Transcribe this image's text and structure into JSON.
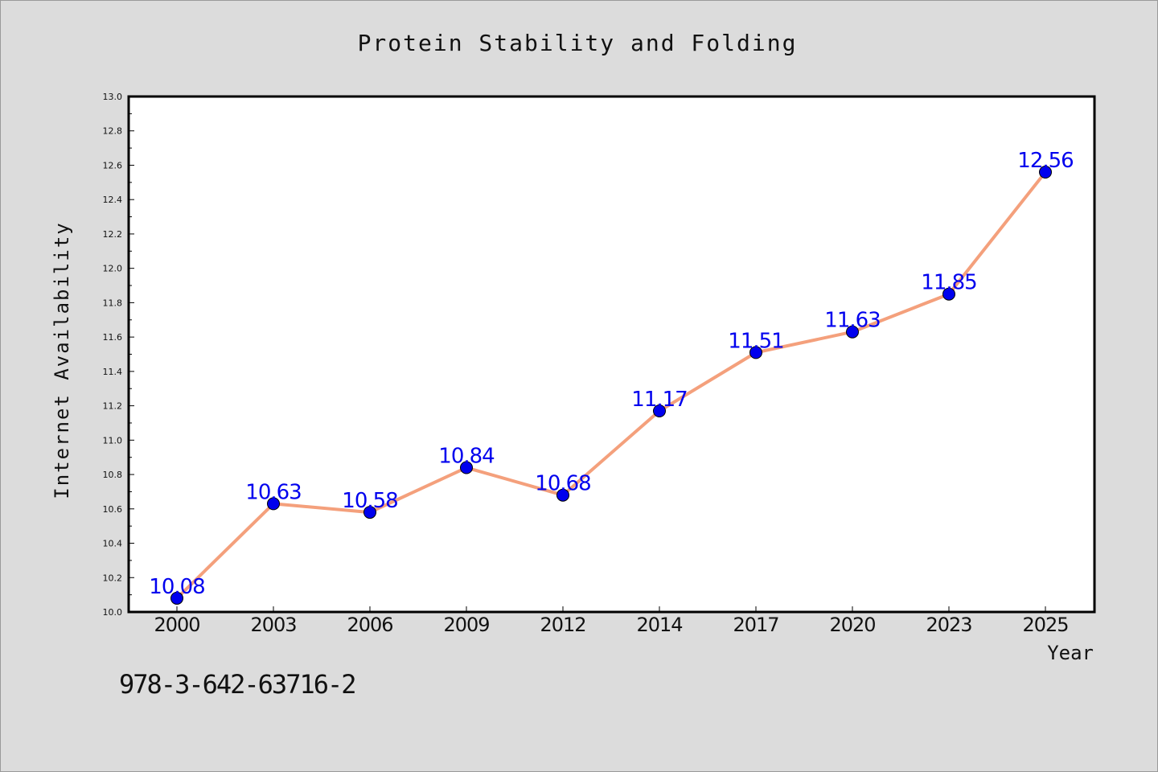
{
  "chart_data": {
    "type": "line",
    "title": "Protein Stability and Folding",
    "xlabel": "Year",
    "ylabel": "Internet Availability",
    "categories": [
      "2000",
      "2003",
      "2006",
      "2009",
      "2012",
      "2014",
      "2017",
      "2020",
      "2023",
      "2025"
    ],
    "values": [
      10.08,
      10.63,
      10.58,
      10.84,
      10.68,
      11.17,
      11.51,
      11.63,
      11.85,
      12.56
    ],
    "data_labels": [
      "10.08",
      "10.63",
      "10.58",
      "10.84",
      "10.68",
      "11.17",
      "11.51",
      "11.63",
      "11.85",
      "12.56"
    ],
    "ylim": [
      10.0,
      13.0
    ],
    "y_ticks": [
      "10.0",
      "10.2",
      "10.4",
      "10.6",
      "10.8",
      "11.0",
      "11.2",
      "11.4",
      "11.6",
      "11.8",
      "12.0",
      "12.2",
      "12.4",
      "12.6",
      "12.8",
      "13.0"
    ],
    "grid": false,
    "line_color": "#f4a07c",
    "marker_color": "#0000ee",
    "label_color": "#0000ee"
  },
  "footer": {
    "isbn": "978-3-642-63716-2"
  }
}
